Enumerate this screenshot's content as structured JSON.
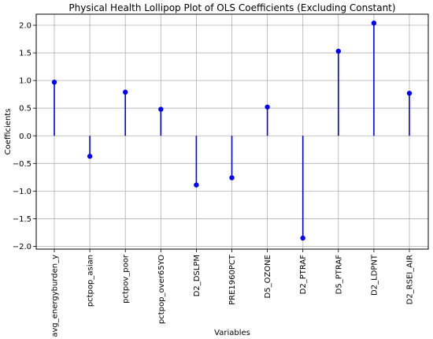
{
  "chart_data": {
    "type": "lollipop",
    "title": "Physical Health Lollipop Plot of OLS Coefficients (Excluding Constant)",
    "xlabel": "Variables",
    "ylabel": "Coefficients",
    "ylim": [
      -2.05,
      2.2
    ],
    "yticks": [
      -2.0,
      -1.5,
      -1.0,
      -0.5,
      0.0,
      0.5,
      1.0,
      1.5,
      2.0
    ],
    "ytick_labels": [
      "−2.0",
      "−1.5",
      "−1.0",
      "−0.5",
      "0.0",
      "0.5",
      "1.0",
      "1.5",
      "2.0"
    ],
    "grid": true,
    "color": "#0000ff",
    "categories": [
      "avg_energyburden_y",
      "pctpop_asian",
      "pctpov_poor",
      "pctpop_over65YO",
      "D2_DSLPM",
      "PRE1960PCT",
      "D5_OZONE",
      "D2_PTRAF",
      "D5_PTRAF",
      "D2_LDPNT",
      "D2_RSEI_AIR"
    ],
    "values": [
      0.97,
      -0.37,
      0.79,
      0.48,
      -0.89,
      -0.76,
      0.52,
      -1.85,
      1.53,
      2.04,
      0.77
    ]
  }
}
